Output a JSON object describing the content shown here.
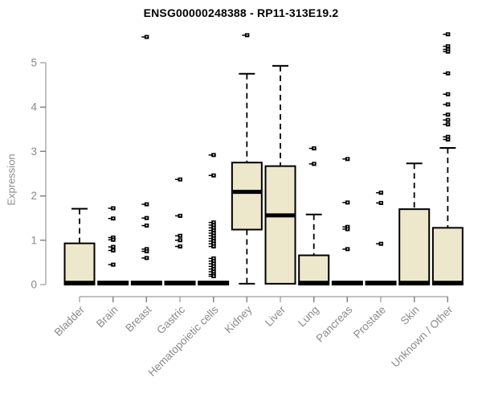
{
  "colors": {
    "background": "#ffffff",
    "box_fill": "#ede7cc",
    "box_stroke": "#000000",
    "median": "#000000",
    "outlier": "#000000",
    "axis": "#848484",
    "tick_label": "#8a8a8a",
    "title": "#000000"
  },
  "chart_data": {
    "type": "box",
    "title": "ENSG00000248388 - RP11-313E19.2",
    "xlabel": "",
    "ylabel": "Expression",
    "yticks": [
      0,
      1,
      2,
      3,
      4,
      5
    ],
    "ylim": [
      0,
      5.75
    ],
    "grid": false,
    "legend": "none",
    "categories": [
      "Bladder",
      "Brain",
      "Breast",
      "Gastric",
      "Hematopoietic cells",
      "Kidney",
      "Liver",
      "Lung",
      "Pancreas",
      "Prostate",
      "Skin",
      "Unknown / Other"
    ],
    "series": [
      {
        "name": "Bladder",
        "whisker_low": 0,
        "q1": 0,
        "median": 0.04,
        "q3": 0.93,
        "whisker_high": 1.71,
        "outliers": []
      },
      {
        "name": "Brain",
        "whisker_low": 0,
        "q1": 0,
        "median": 0.03,
        "q3": 0.07,
        "whisker_high": 0.07,
        "outliers": [
          1.72,
          1.49,
          1.06,
          1.01,
          0.85,
          0.77,
          0.45
        ]
      },
      {
        "name": "Breast",
        "whisker_low": 0,
        "q1": 0,
        "median": 0.03,
        "q3": 0.07,
        "whisker_high": 0.07,
        "outliers": [
          5.58,
          1.81,
          1.5,
          1.33,
          0.8,
          0.75,
          0.6
        ]
      },
      {
        "name": "Gastric",
        "whisker_low": 0,
        "q1": 0,
        "median": 0.03,
        "q3": 0.07,
        "whisker_high": 0.07,
        "outliers": [
          2.37,
          1.55,
          1.1,
          1.0,
          0.86
        ]
      },
      {
        "name": "Hematopoietic cells",
        "whisker_low": 0,
        "q1": 0,
        "median": 0.03,
        "q3": 0.07,
        "whisker_high": 0.07,
        "outliers": [
          2.92,
          2.46,
          1.4,
          1.34,
          1.28,
          1.22,
          1.16,
          1.1,
          1.04,
          0.98,
          0.92,
          0.86,
          0.59,
          0.53,
          0.47,
          0.41,
          0.35,
          0.29,
          0.23,
          0.19
        ]
      },
      {
        "name": "Kidney",
        "whisker_low": 0.02,
        "q1": 1.24,
        "median": 2.09,
        "q3": 2.75,
        "whisker_high": 4.75,
        "outliers": [
          5.62
        ]
      },
      {
        "name": "Liver",
        "whisker_low": 0,
        "q1": 0.02,
        "median": 1.56,
        "q3": 2.67,
        "whisker_high": 4.93,
        "outliers": []
      },
      {
        "name": "Lung",
        "whisker_low": 0,
        "q1": 0,
        "median": 0.04,
        "q3": 0.66,
        "whisker_high": 1.58,
        "outliers": [
          3.07,
          2.72
        ]
      },
      {
        "name": "Pancreas",
        "whisker_low": 0,
        "q1": 0,
        "median": 0.03,
        "q3": 0.07,
        "whisker_high": 0.07,
        "outliers": [
          2.83,
          1.85,
          1.3,
          1.25,
          0.8
        ]
      },
      {
        "name": "Prostate",
        "whisker_low": 0,
        "q1": 0,
        "median": 0.03,
        "q3": 0.07,
        "whisker_high": 0.07,
        "outliers": [
          2.07,
          1.84,
          0.92
        ]
      },
      {
        "name": "Skin",
        "whisker_low": 0,
        "q1": 0,
        "median": 0.04,
        "q3": 1.7,
        "whisker_high": 2.73,
        "outliers": []
      },
      {
        "name": "Unknown / Other",
        "whisker_low": 0,
        "q1": 0,
        "median": 0.04,
        "q3": 1.28,
        "whisker_high": 3.08,
        "outliers": [
          5.64,
          5.37,
          5.3,
          5.25,
          4.76,
          4.29,
          4.06,
          3.83,
          3.71,
          3.61,
          3.33,
          3.27
        ]
      }
    ]
  }
}
